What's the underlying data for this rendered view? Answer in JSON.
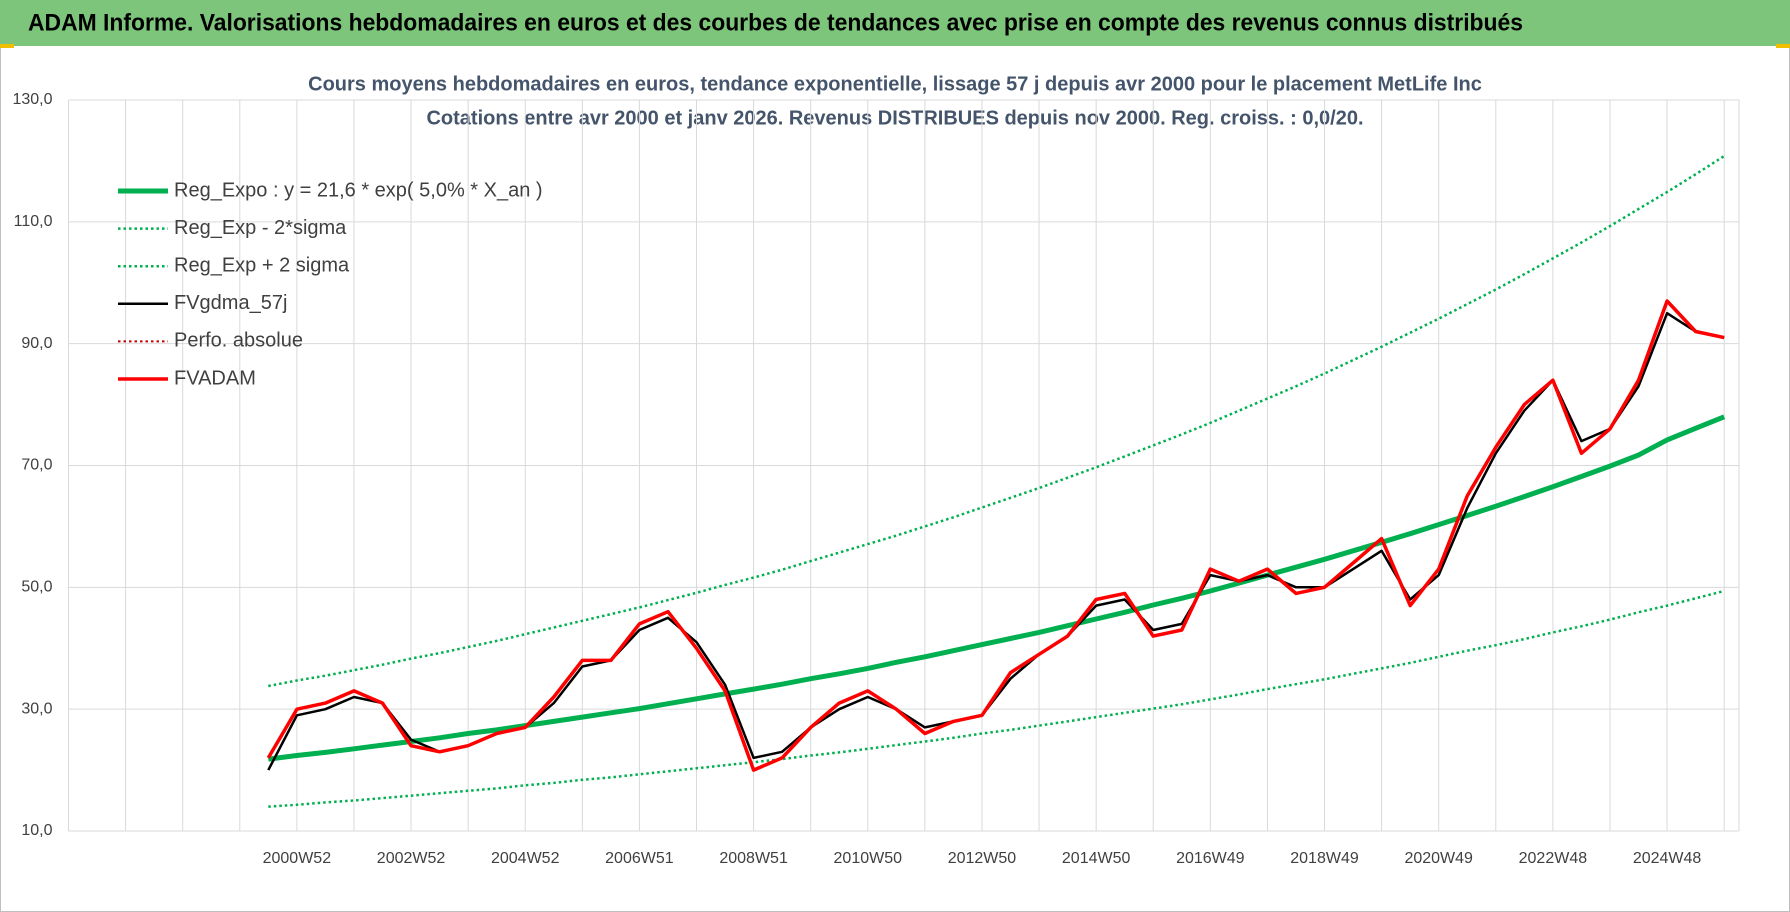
{
  "header": {
    "title": "ADAM Informe. Valorisations hebdomadaires en euros et des courbes de tendances avec prise en compte des revenus connus distribués"
  },
  "chart_data": {
    "type": "line",
    "title": "Cours moyens hebdomadaires en euros, tendance exponentielle, lissage 57 j depuis avr 2000 pour le placement MetLife Inc",
    "subtitle": "Cotations entre avr 2000 et janv 2026. Revenus DISTRIBUES depuis nov 2000.  Reg. croiss. : 0,0/20.",
    "categories": [
      null,
      null,
      null,
      null,
      null,
      null,
      null,
      null,
      "2000W52",
      null,
      null,
      null,
      "2002W52",
      null,
      null,
      null,
      "2004W52",
      null,
      null,
      null,
      "2006W51",
      null,
      null,
      null,
      "2008W51",
      null,
      null,
      null,
      "2010W50",
      null,
      null,
      null,
      "2012W50",
      null,
      null,
      null,
      "2014W50",
      null,
      null,
      null,
      "2016W49",
      null,
      null,
      null,
      "2018W49",
      null,
      null,
      null,
      "2020W49",
      null,
      null,
      null,
      "2022W48",
      null,
      null,
      null,
      "2024W48",
      null,
      null
    ],
    "ylim": [
      10,
      130
    ],
    "yticks": [
      {
        "value": 10,
        "label": "10,0"
      },
      {
        "value": 30,
        "label": "30,0"
      },
      {
        "value": 50,
        "label": "50,0"
      },
      {
        "value": 70,
        "label": "70,0"
      },
      {
        "value": 90,
        "label": "90,0"
      },
      {
        "value": 110,
        "label": "110,0"
      },
      {
        "value": 130,
        "label": "130,0"
      }
    ],
    "grid": true,
    "legend": "upper left",
    "series": [
      {
        "name": "Reg_Expo : y = 21,6 * exp( 5,0% *  X_an )",
        "color": "#00b050",
        "style": "solid",
        "width": 5,
        "values": [
          null,
          null,
          null,
          null,
          null,
          null,
          null,
          21.8,
          22.4,
          22.9,
          23.5,
          24.1,
          24.7,
          25.3,
          26.0,
          26.6,
          27.3,
          28.0,
          28.7,
          29.4,
          30.1,
          30.9,
          31.7,
          32.5,
          33.3,
          34.1,
          35.0,
          35.8,
          36.7,
          37.7,
          38.6,
          39.6,
          40.6,
          41.6,
          42.6,
          43.7,
          44.8,
          45.9,
          47.1,
          48.2,
          49.4,
          50.7,
          52.0,
          53.3,
          54.6,
          56.0,
          57.4,
          58.8,
          60.3,
          61.8,
          63.3,
          64.9,
          66.5,
          68.2,
          69.9,
          71.7,
          74.2,
          76.1,
          78.0
        ]
      },
      {
        "name": "Reg_Exp - 2*sigma",
        "color": "#00b050",
        "style": "dotted",
        "width": 2.5,
        "values": [
          null,
          null,
          null,
          null,
          null,
          null,
          null,
          14.0,
          14.3,
          14.7,
          15.0,
          15.4,
          15.8,
          16.2,
          16.6,
          17.0,
          17.5,
          17.9,
          18.4,
          18.8,
          19.3,
          19.8,
          20.3,
          20.8,
          21.3,
          21.8,
          22.4,
          22.9,
          23.5,
          24.1,
          24.7,
          25.3,
          26.0,
          26.6,
          27.3,
          28.0,
          28.7,
          29.4,
          30.1,
          30.8,
          31.6,
          32.4,
          33.3,
          34.1,
          34.9,
          35.8,
          36.7,
          37.6,
          38.6,
          39.6,
          40.5,
          41.5,
          42.6,
          43.6,
          44.7,
          45.9,
          47.0,
          48.2,
          49.4
        ]
      },
      {
        "name": "Reg_Exp + 2 sigma",
        "color": "#00b050",
        "style": "dotted",
        "width": 2.5,
        "values": [
          null,
          null,
          null,
          null,
          null,
          null,
          null,
          33.8,
          34.7,
          35.5,
          36.4,
          37.3,
          38.3,
          39.2,
          40.2,
          41.2,
          42.3,
          43.4,
          44.5,
          45.6,
          46.7,
          47.9,
          49.1,
          50.4,
          51.6,
          52.9,
          54.3,
          55.7,
          57.1,
          58.5,
          60.0,
          61.5,
          63.1,
          64.7,
          66.3,
          68.0,
          69.7,
          71.5,
          73.3,
          75.1,
          77.0,
          79.0,
          81.0,
          83.0,
          85.1,
          87.3,
          89.5,
          91.8,
          94.1,
          96.5,
          98.9,
          101.4,
          104.0,
          106.6,
          109.3,
          112.1,
          114.9,
          117.8,
          120.8
        ]
      },
      {
        "name": "FVgdma_57j",
        "color": "#000000",
        "style": "solid",
        "width": 2.5,
        "values": [
          null,
          null,
          null,
          null,
          null,
          null,
          null,
          20,
          29,
          30,
          32,
          31,
          25,
          23,
          24,
          26,
          27,
          31,
          37,
          38,
          43,
          45,
          41,
          34,
          22,
          23,
          27,
          30,
          32,
          30,
          27,
          28,
          29,
          35,
          39,
          42,
          47,
          48,
          43,
          44,
          52,
          51,
          52,
          50,
          50,
          53,
          56,
          48,
          52,
          63,
          72,
          79,
          84,
          74,
          76,
          83,
          95,
          92,
          91
        ]
      },
      {
        "name": "Perfo. absolue",
        "color": "#c00000",
        "style": "dotted",
        "width": 2,
        "values": [
          null,
          null,
          null,
          null,
          null,
          null,
          null,
          22,
          30,
          31,
          33,
          31,
          24,
          23,
          24,
          26,
          27,
          32,
          38,
          38,
          44,
          46,
          40,
          33,
          20,
          22,
          27,
          31,
          33,
          30,
          26,
          28,
          29,
          36,
          39,
          42,
          48,
          49,
          42,
          43,
          53,
          51,
          53,
          49,
          50,
          54,
          58,
          47,
          53,
          65,
          73,
          80,
          84,
          72,
          76,
          84,
          97,
          92,
          91
        ]
      },
      {
        "name": "FVADAM",
        "color": "#ff0000",
        "style": "solid",
        "width": 3.5,
        "values": [
          null,
          null,
          null,
          null,
          null,
          null,
          null,
          22,
          30,
          31,
          33,
          31,
          24,
          23,
          24,
          26,
          27,
          32,
          38,
          38,
          44,
          46,
          40,
          33,
          20,
          22,
          27,
          31,
          33,
          30,
          26,
          28,
          29,
          36,
          39,
          42,
          48,
          49,
          42,
          43,
          53,
          51,
          53,
          49,
          50,
          54,
          58,
          47,
          53,
          65,
          73,
          80,
          84,
          72,
          76,
          84,
          97,
          92,
          91
        ]
      }
    ]
  }
}
